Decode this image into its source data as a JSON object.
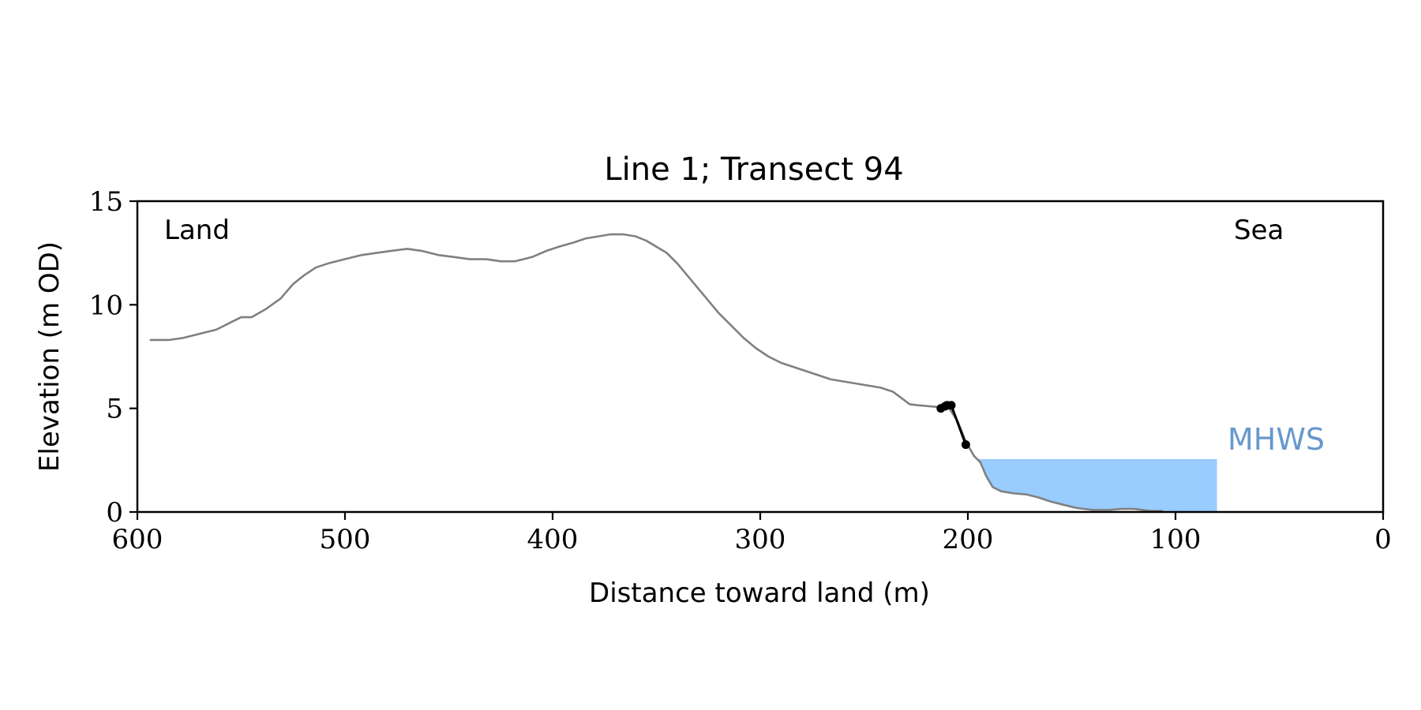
{
  "chart_data": {
    "type": "line",
    "title": "Line 1; Transect 94",
    "xlabel": "Distance toward land (m)",
    "ylabel": "Elevation (m OD)",
    "xlim": [
      600,
      0
    ],
    "ylim": [
      0,
      15
    ],
    "x_ticks": [
      600,
      500,
      400,
      300,
      200,
      100,
      0
    ],
    "y_ticks": [
      0,
      5,
      10,
      15
    ],
    "grid": false,
    "annotations": {
      "land": "Land",
      "sea": "Sea",
      "mhws": "MHWS"
    },
    "mhws_level": 2.55,
    "mhws_x_range": [
      195,
      80
    ],
    "colors": {
      "profile": "#808080",
      "highlight": "#000000",
      "mhws_fill": "#99ccff",
      "mhws_label": "#6699cc",
      "shade": "#d3d3d3"
    },
    "profile": [
      [
        594,
        8.3
      ],
      [
        585,
        8.3
      ],
      [
        578,
        8.4
      ],
      [
        570,
        8.6
      ],
      [
        562,
        8.8
      ],
      [
        556,
        9.1
      ],
      [
        550,
        9.4
      ],
      [
        545,
        9.4
      ],
      [
        538,
        9.8
      ],
      [
        531,
        10.3
      ],
      [
        525,
        11.0
      ],
      [
        520,
        11.4
      ],
      [
        514,
        11.8
      ],
      [
        508,
        12.0
      ],
      [
        500,
        12.2
      ],
      [
        492,
        12.4
      ],
      [
        485,
        12.5
      ],
      [
        478,
        12.6
      ],
      [
        470,
        12.7
      ],
      [
        463,
        12.6
      ],
      [
        455,
        12.4
      ],
      [
        447,
        12.3
      ],
      [
        440,
        12.2
      ],
      [
        432,
        12.2
      ],
      [
        425,
        12.1
      ],
      [
        418,
        12.1
      ],
      [
        410,
        12.3
      ],
      [
        403,
        12.6
      ],
      [
        397,
        12.8
      ],
      [
        390,
        13.0
      ],
      [
        384,
        13.2
      ],
      [
        378,
        13.3
      ],
      [
        372,
        13.4
      ],
      [
        366,
        13.4
      ],
      [
        360,
        13.3
      ],
      [
        355,
        13.1
      ],
      [
        350,
        12.8
      ],
      [
        345,
        12.5
      ],
      [
        340,
        12.0
      ],
      [
        335,
        11.4
      ],
      [
        330,
        10.8
      ],
      [
        325,
        10.2
      ],
      [
        320,
        9.6
      ],
      [
        314,
        9.0
      ],
      [
        308,
        8.4
      ],
      [
        302,
        7.9
      ],
      [
        296,
        7.5
      ],
      [
        290,
        7.2
      ],
      [
        284,
        7.0
      ],
      [
        278,
        6.8
      ],
      [
        272,
        6.6
      ],
      [
        266,
        6.4
      ],
      [
        260,
        6.3
      ],
      [
        254,
        6.2
      ],
      [
        248,
        6.1
      ],
      [
        242,
        6.0
      ],
      [
        236,
        5.8
      ],
      [
        232,
        5.5
      ],
      [
        228,
        5.2
      ],
      [
        224,
        5.15
      ],
      [
        218,
        5.1
      ],
      [
        213,
        5.05
      ],
      [
        209,
        5.0
      ],
      [
        205,
        4.4
      ],
      [
        201,
        3.4
      ],
      [
        197,
        2.7
      ],
      [
        194,
        2.4
      ],
      [
        191,
        1.7
      ],
      [
        188,
        1.2
      ],
      [
        184,
        1.0
      ],
      [
        178,
        0.9
      ],
      [
        172,
        0.85
      ],
      [
        166,
        0.7
      ],
      [
        160,
        0.5
      ],
      [
        154,
        0.35
      ],
      [
        148,
        0.2
      ],
      [
        140,
        0.1
      ],
      [
        132,
        0.1
      ],
      [
        126,
        0.15
      ],
      [
        120,
        0.15
      ],
      [
        112,
        0.05
      ],
      [
        106,
        0.05
      ]
    ],
    "highlight_points": [
      [
        213,
        5.0
      ],
      [
        211,
        5.1
      ],
      [
        210,
        5.15
      ],
      [
        208,
        5.15
      ],
      [
        201,
        3.25
      ]
    ]
  }
}
